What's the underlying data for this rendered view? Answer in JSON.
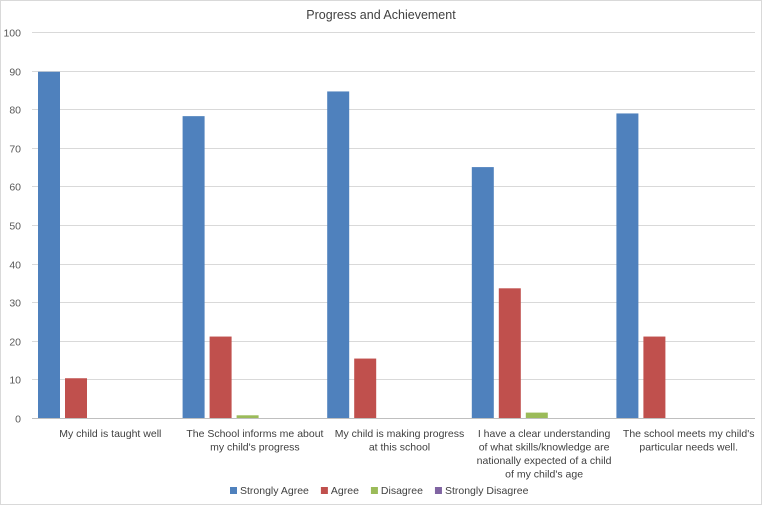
{
  "chart_data": {
    "type": "bar",
    "title": "Progress and Achievement",
    "xlabel": "",
    "ylabel": "",
    "ylim": [
      0,
      100
    ],
    "yticks": [
      0,
      10,
      20,
      30,
      40,
      50,
      60,
      70,
      80,
      90,
      100
    ],
    "grid": true,
    "legend_position": "bottom",
    "categories": [
      [
        "My child is taught well"
      ],
      [
        "The School informs me about",
        "my child's progress"
      ],
      [
        "My child is making progress",
        "at this school"
      ],
      [
        "I have a clear understanding",
        "of what skills/knowledge are",
        "nationally expected of a child",
        "of my child's age"
      ],
      [
        "The school meets my child's",
        "particular needs well."
      ]
    ],
    "series": [
      {
        "name": "Strongly Agree",
        "color": "#4f81bd",
        "values": [
          89.7,
          78.2,
          84.6,
          65.0,
          78.9
        ]
      },
      {
        "name": "Agree",
        "color": "#c0504d",
        "values": [
          10.3,
          21.1,
          15.4,
          33.6,
          21.1
        ]
      },
      {
        "name": "Disagree",
        "color": "#9bbb59",
        "values": [
          0,
          0.7,
          0,
          1.4,
          0
        ]
      },
      {
        "name": "Strongly Disagree",
        "color": "#8064a2",
        "values": [
          0,
          0,
          0,
          0,
          0
        ]
      }
    ]
  }
}
